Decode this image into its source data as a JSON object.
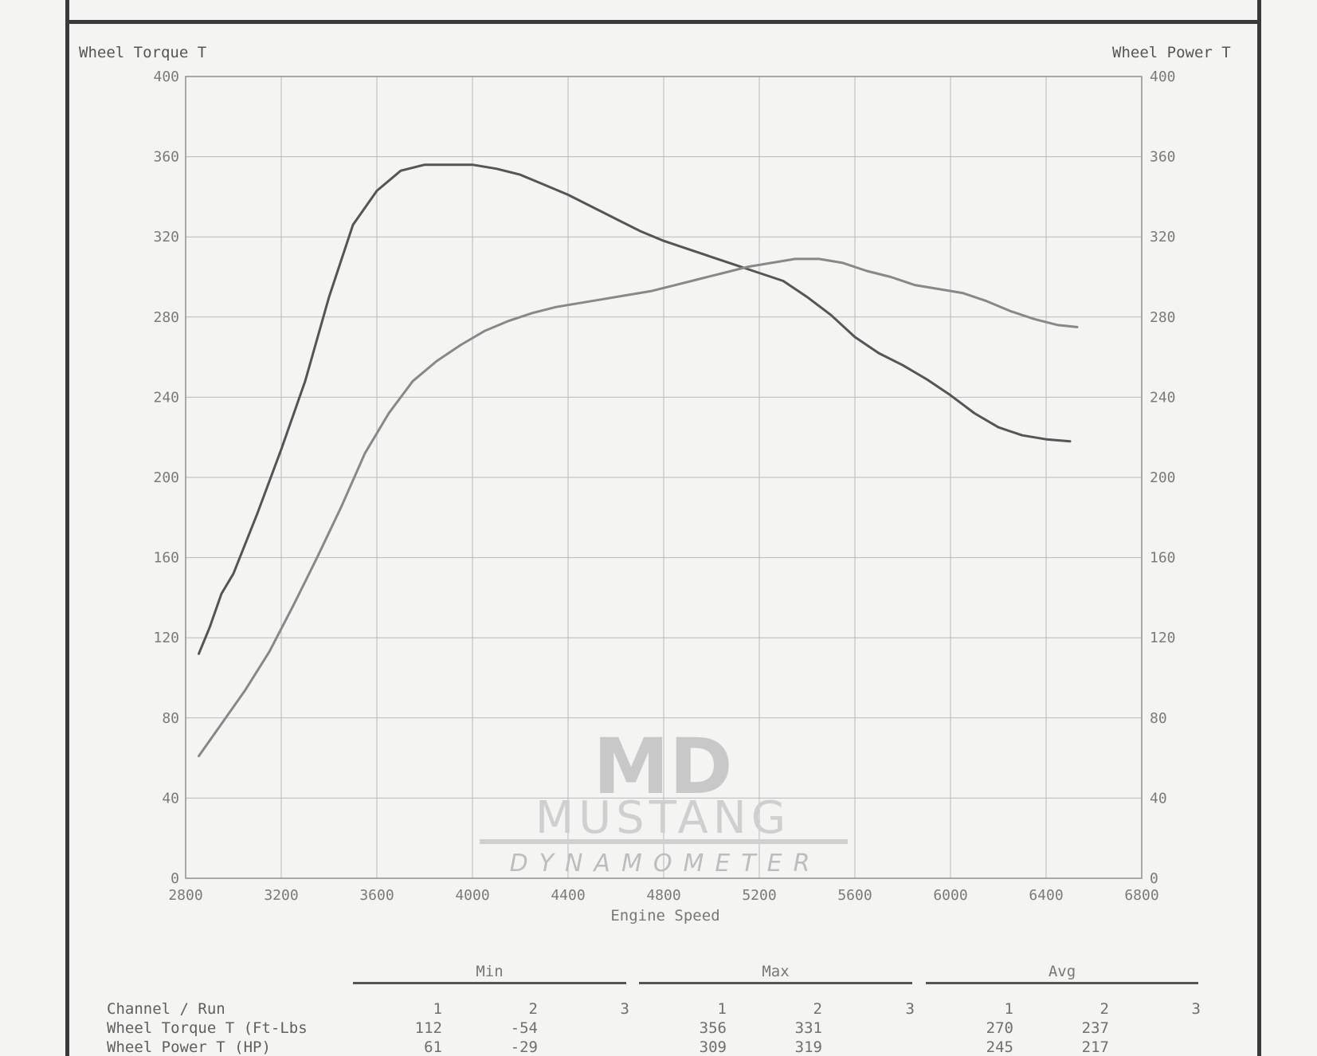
{
  "chart_data": {
    "type": "line",
    "title": "",
    "xlabel": "Engine Speed",
    "ylabel_left": "Wheel Torque T",
    "ylabel_right": "Wheel Power T",
    "xlim": [
      2800,
      6800
    ],
    "ylim": [
      0,
      400
    ],
    "x_ticks": [
      2800,
      3200,
      3600,
      4000,
      4400,
      4800,
      5200,
      5600,
      6000,
      6400,
      6800
    ],
    "y_ticks": [
      0,
      40,
      80,
      120,
      160,
      200,
      240,
      280,
      320,
      360,
      400
    ],
    "grid": true,
    "series": [
      {
        "x": [
          2855,
          2900,
          2950,
          3000,
          3100,
          3200,
          3300,
          3400,
          3500,
          3600,
          3700,
          3800,
          3900,
          4000,
          4100,
          4200,
          4300,
          4400,
          4500,
          4600,
          4700,
          4800,
          4900,
          5000,
          5100,
          5200,
          5300,
          5400,
          5500,
          5600,
          5700,
          5800,
          5900,
          6000,
          6100,
          6200,
          6300,
          6400,
          6500
        ],
        "y": [
          112,
          125,
          142,
          152,
          182,
          214,
          248,
          290,
          326,
          343,
          353,
          356,
          356,
          356,
          354,
          351,
          346,
          341,
          335,
          329,
          323,
          318,
          314,
          310,
          306,
          302,
          298,
          290,
          281,
          270,
          262,
          256,
          249,
          241,
          232,
          225,
          221,
          219,
          218
        ],
        "color": "#555555"
      },
      {
        "x": [
          2855,
          2950,
          3050,
          3150,
          3250,
          3350,
          3450,
          3550,
          3650,
          3750,
          3850,
          3950,
          4050,
          4150,
          4250,
          4350,
          4450,
          4550,
          4650,
          4750,
          4850,
          4950,
          5050,
          5150,
          5250,
          5350,
          5450,
          5550,
          5650,
          5750,
          5850,
          5950,
          6050,
          6150,
          6250,
          6350,
          6450,
          6530
        ],
        "y": [
          61,
          77,
          94,
          113,
          136,
          160,
          185,
          212,
          232,
          248,
          258,
          266,
          273,
          278,
          282,
          285,
          287,
          289,
          291,
          293,
          296,
          299,
          302,
          305,
          307,
          309,
          309,
          307,
          303,
          300,
          296,
          294,
          292,
          288,
          283,
          279,
          276,
          275
        ],
        "color": "#888888"
      }
    ]
  },
  "logo": {
    "mark": "MD",
    "name": "MUSTANG",
    "sub": "DYNAMOMETER"
  },
  "stats": {
    "groups": [
      "Min",
      "Max",
      "Avg"
    ],
    "header_label": "Channel / Run",
    "runs": [
      "1",
      "2",
      "3"
    ],
    "rows": [
      {
        "label": "Wheel Torque T (Ft-Lbs",
        "min": [
          "112",
          "-54",
          ""
        ],
        "max": [
          "356",
          "331",
          ""
        ],
        "avg": [
          "270",
          "237",
          ""
        ]
      },
      {
        "label": "Wheel Power T (HP)",
        "min": [
          "61",
          "-29",
          ""
        ],
        "max": [
          "309",
          "319",
          ""
        ],
        "avg": [
          "245",
          "217",
          ""
        ]
      }
    ]
  }
}
